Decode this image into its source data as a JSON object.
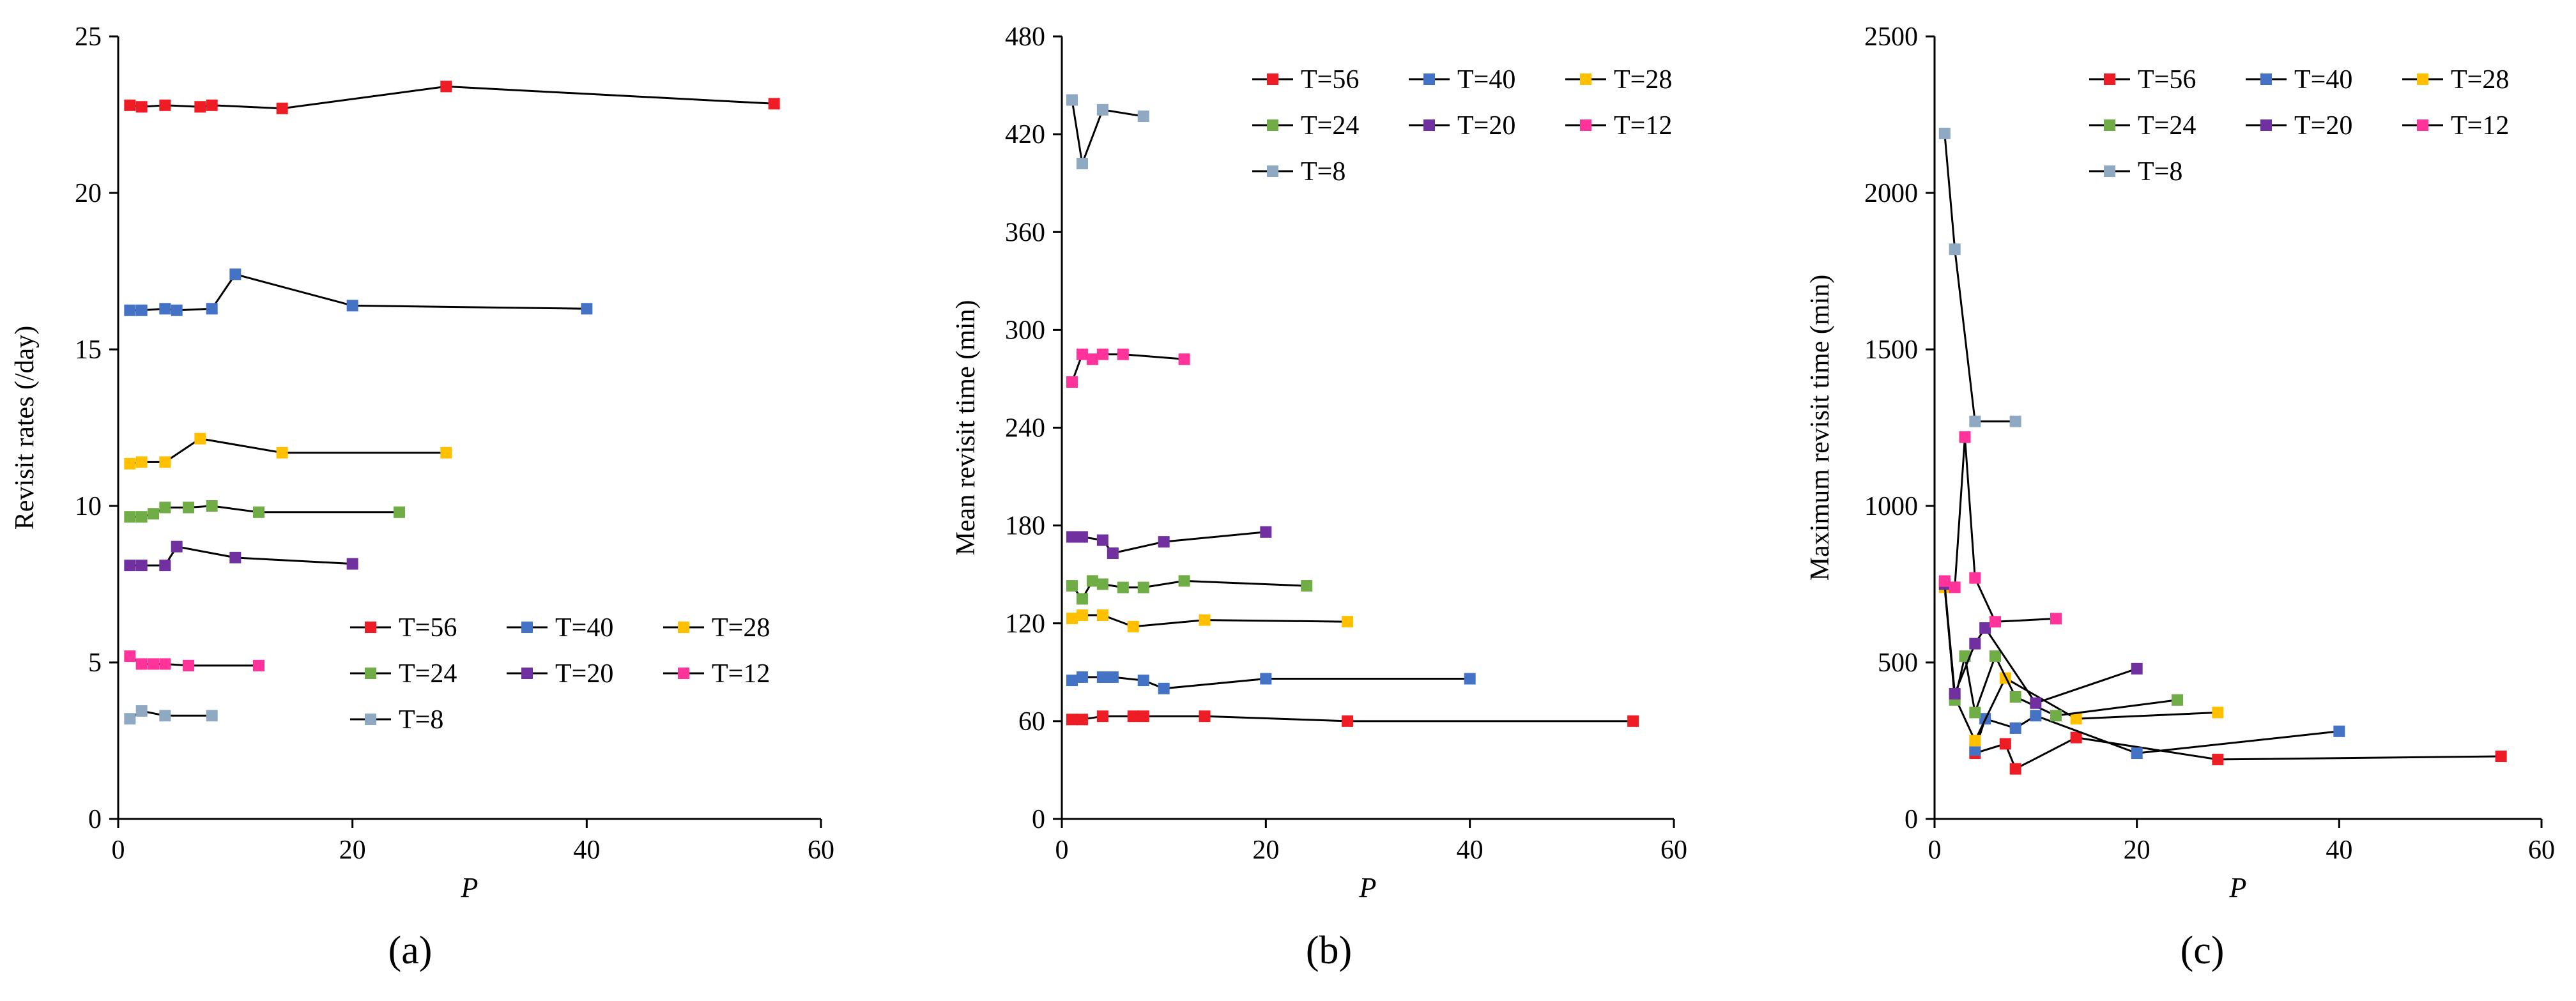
{
  "chart_data": [
    {
      "type": "line",
      "panel_label": "(a)",
      "xlabel": "P",
      "ylabel": "Revisit rates (/day)",
      "xlim": [
        0,
        60
      ],
      "ylim": [
        0,
        25
      ],
      "xticks": [
        0,
        20,
        40,
        60
      ],
      "yticks": [
        0,
        5,
        10,
        15,
        20,
        25
      ],
      "legend_position": "bottom-right",
      "legend_columns": 3,
      "series": [
        {
          "name": "T=56",
          "color": "#ee1c24",
          "x": [
            1,
            2,
            4,
            7,
            8,
            14,
            28,
            56
          ],
          "y": [
            22.8,
            22.75,
            22.8,
            22.75,
            22.8,
            22.7,
            23.4,
            22.85
          ]
        },
        {
          "name": "T=40",
          "color": "#4472c4",
          "x": [
            1,
            2,
            4,
            5,
            8,
            10,
            20,
            40
          ],
          "y": [
            16.25,
            16.25,
            16.3,
            16.25,
            16.3,
            17.4,
            16.4,
            16.3
          ]
        },
        {
          "name": "T=28",
          "color": "#ffc000",
          "x": [
            1,
            2,
            4,
            7,
            14,
            28
          ],
          "y": [
            11.35,
            11.4,
            11.4,
            12.15,
            11.7,
            11.7
          ]
        },
        {
          "name": "T=24",
          "color": "#70ad47",
          "x": [
            1,
            2,
            3,
            4,
            6,
            8,
            12,
            24
          ],
          "y": [
            9.65,
            9.65,
            9.75,
            9.95,
            9.95,
            10.0,
            9.8,
            9.8
          ]
        },
        {
          "name": "T=20",
          "color": "#7030a0",
          "x": [
            1,
            2,
            4,
            5,
            10,
            20
          ],
          "y": [
            8.1,
            8.1,
            8.1,
            8.7,
            8.35,
            8.15
          ]
        },
        {
          "name": "T=12",
          "color": "#ff3399",
          "x": [
            1,
            2,
            3,
            4,
            6,
            12
          ],
          "y": [
            5.2,
            4.95,
            4.95,
            4.95,
            4.9,
            4.9
          ]
        },
        {
          "name": "T=8",
          "color": "#8ea9c1",
          "x": [
            1,
            2,
            4,
            8
          ],
          "y": [
            3.2,
            3.45,
            3.3,
            3.3
          ]
        }
      ]
    },
    {
      "type": "line",
      "panel_label": "(b)",
      "xlabel": "P",
      "ylabel": "Mean revisit time (min)",
      "xlim": [
        0,
        60
      ],
      "ylim": [
        0,
        480
      ],
      "xticks": [
        0,
        20,
        40,
        60
      ],
      "yticks": [
        0,
        60,
        120,
        180,
        240,
        300,
        360,
        420,
        480
      ],
      "legend_position": "top-right",
      "legend_columns": 3,
      "series": [
        {
          "name": "T=56",
          "color": "#ee1c24",
          "x": [
            1,
            2,
            4,
            7,
            8,
            14,
            28,
            56
          ],
          "y": [
            61,
            61,
            63,
            63,
            63,
            63,
            60,
            60
          ]
        },
        {
          "name": "T=40",
          "color": "#4472c4",
          "x": [
            1,
            2,
            4,
            5,
            8,
            10,
            20,
            40
          ],
          "y": [
            85,
            87,
            87,
            87,
            85,
            80,
            86,
            86
          ]
        },
        {
          "name": "T=28",
          "color": "#ffc000",
          "x": [
            1,
            2,
            4,
            7,
            14,
            28
          ],
          "y": [
            123,
            125,
            125,
            118,
            122,
            121
          ]
        },
        {
          "name": "T=24",
          "color": "#70ad47",
          "x": [
            1,
            2,
            3,
            4,
            6,
            8,
            12,
            24
          ],
          "y": [
            143,
            135,
            146,
            144,
            142,
            142,
            146,
            143
          ]
        },
        {
          "name": "T=20",
          "color": "#7030a0",
          "x": [
            1,
            2,
            4,
            5,
            10,
            20
          ],
          "y": [
            173,
            173,
            171,
            163,
            170,
            176
          ]
        },
        {
          "name": "T=12",
          "color": "#ff3399",
          "x": [
            1,
            2,
            3,
            4,
            6,
            12
          ],
          "y": [
            268,
            285,
            282,
            285,
            285,
            282
          ]
        },
        {
          "name": "T=8",
          "color": "#8ea9c1",
          "x": [
            1,
            2,
            4,
            8
          ],
          "y": [
            441,
            402,
            435,
            431
          ]
        }
      ]
    },
    {
      "type": "line",
      "panel_label": "(c)",
      "xlabel": "P",
      "ylabel": "Maximum revisit time (min)",
      "xlim": [
        0,
        60
      ],
      "ylim": [
        0,
        2500
      ],
      "xticks": [
        0,
        20,
        40,
        60
      ],
      "yticks": [
        0,
        500,
        1000,
        1500,
        2000,
        2500
      ],
      "legend_position": "top-right",
      "legend_columns": 3,
      "series": [
        {
          "name": "T=56",
          "color": "#ee1c24",
          "x": [
            4,
            7,
            8,
            14,
            28,
            56
          ],
          "y": [
            210,
            240,
            160,
            260,
            190,
            200
          ]
        },
        {
          "name": "T=40",
          "color": "#4472c4",
          "x": [
            4,
            5,
            8,
            10,
            20,
            40
          ],
          "y": [
            220,
            320,
            290,
            330,
            210,
            280
          ]
        },
        {
          "name": "T=28",
          "color": "#ffc000",
          "x": [
            1,
            2,
            4,
            7,
            14,
            28
          ],
          "y": [
            740,
            390,
            250,
            450,
            320,
            340
          ]
        },
        {
          "name": "T=24",
          "color": "#70ad47",
          "x": [
            1,
            2,
            3,
            4,
            6,
            8,
            12,
            24
          ],
          "y": [
            750,
            380,
            520,
            340,
            520,
            390,
            330,
            380
          ]
        },
        {
          "name": "T=20",
          "color": "#7030a0",
          "x": [
            1,
            2,
            4,
            5,
            10,
            20
          ],
          "y": [
            750,
            400,
            560,
            610,
            370,
            480
          ]
        },
        {
          "name": "T=12",
          "color": "#ff3399",
          "x": [
            1,
            2,
            3,
            4,
            6,
            12
          ],
          "y": [
            760,
            740,
            1220,
            770,
            630,
            640
          ]
        },
        {
          "name": "T=8",
          "color": "#8ea9c1",
          "x": [
            1,
            2,
            4,
            8
          ],
          "y": [
            2190,
            1820,
            1270,
            1270
          ]
        }
      ]
    }
  ]
}
